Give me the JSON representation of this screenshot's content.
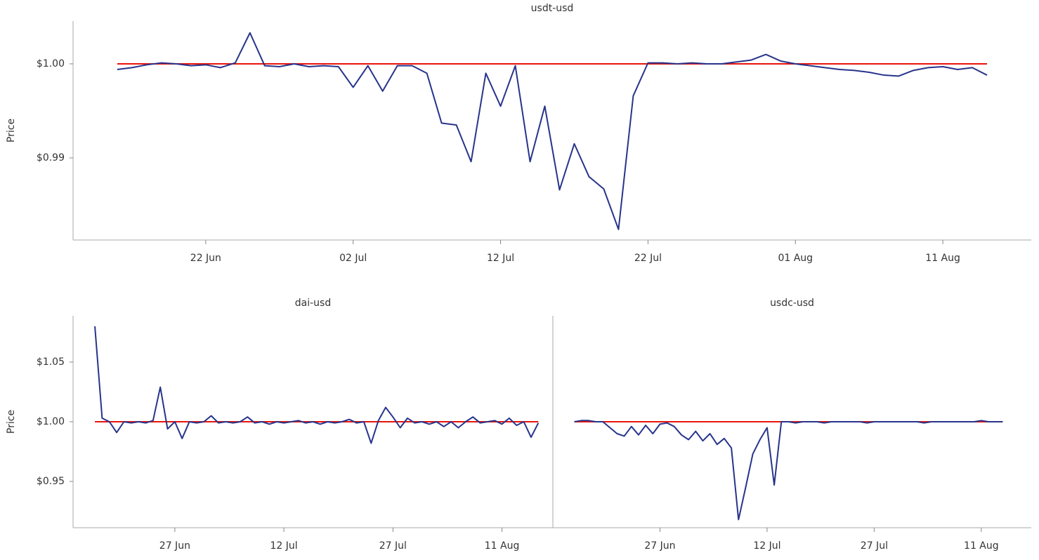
{
  "chart_data": [
    {
      "type": "line",
      "title": "usdt-usd",
      "ylabel": "Price",
      "color": "#27348b",
      "ref_line": {
        "value": 1.0,
        "color": "#e8140c"
      },
      "ylim": [
        0.98127,
        1.00455
      ],
      "yticks": [
        {
          "value": 1.0,
          "label": "$1.00"
        },
        {
          "value": 0.99,
          "label": "$0.99"
        }
      ],
      "xlim": [
        "13 Jun",
        "17 Aug"
      ],
      "xticks": [
        "22 Jun",
        "02 Jul",
        "12 Jul",
        "22 Jul",
        "01 Aug",
        "11 Aug"
      ],
      "x": [
        "16 Jun",
        "17 Jun",
        "18 Jun",
        "19 Jun",
        "20 Jun",
        "21 Jun",
        "22 Jun",
        "23 Jun",
        "24 Jun",
        "25 Jun",
        "26 Jun",
        "27 Jun",
        "28 Jun",
        "29 Jun",
        "30 Jun",
        "01 Jul",
        "02 Jul",
        "03 Jul",
        "04 Jul",
        "05 Jul",
        "06 Jul",
        "07 Jul",
        "08 Jul",
        "09 Jul",
        "10 Jul",
        "11 Jul",
        "12 Jul",
        "13 Jul",
        "14 Jul",
        "15 Jul",
        "16 Jul",
        "17 Jul",
        "18 Jul",
        "19 Jul",
        "20 Jul",
        "21 Jul",
        "22 Jul",
        "23 Jul",
        "24 Jul",
        "25 Jul",
        "26 Jul",
        "27 Jul",
        "28 Jul",
        "29 Jul",
        "30 Jul",
        "31 Jul",
        "01 Aug",
        "02 Aug",
        "03 Aug",
        "04 Aug",
        "05 Aug",
        "06 Aug",
        "07 Aug",
        "08 Aug",
        "09 Aug",
        "10 Aug",
        "11 Aug",
        "12 Aug",
        "13 Aug",
        "14 Aug"
      ],
      "values": [
        0.9994,
        0.9996,
        0.9999,
        1.0001,
        1.0,
        0.9998,
        0.9999,
        0.9996,
        1.0001,
        1.0033,
        0.9998,
        0.9997,
        1.0,
        0.9997,
        0.9998,
        0.9997,
        0.9975,
        0.9998,
        0.9971,
        0.9998,
        0.9998,
        0.999,
        0.9937,
        0.9935,
        0.9896,
        0.999,
        0.9955,
        0.9998,
        0.9896,
        0.9955,
        0.9866,
        0.9915,
        0.988,
        0.9867,
        0.9824,
        0.9966,
        1.0001,
        1.0001,
        1.0,
        1.0001,
        1.0,
        1.0,
        1.0002,
        1.0004,
        1.001,
        1.0003,
        1.0,
        0.9998,
        0.9996,
        0.9994,
        0.9993,
        0.9991,
        0.9988,
        0.9987,
        0.9993,
        0.9996,
        0.9997,
        0.9994,
        0.9996,
        0.9988
      ]
    },
    {
      "type": "line",
      "title": "dai-usd",
      "ylabel": "Price",
      "color": "#27348b",
      "ref_line": {
        "value": 1.0,
        "color": "#e8140c"
      },
      "ylim": [
        0.9112,
        1.0888
      ],
      "yticks": [
        {
          "value": 1.05,
          "label": "$1.05"
        },
        {
          "value": 1.0,
          "label": "$1.00"
        },
        {
          "value": 0.95,
          "label": "$0.95"
        }
      ],
      "xlim": [
        "13 Jun",
        "18 Aug"
      ],
      "xticks": [
        "27 Jun",
        "12 Jul",
        "27 Jul",
        "11 Aug"
      ],
      "x": [
        "16 Jun",
        "17 Jun",
        "18 Jun",
        "19 Jun",
        "20 Jun",
        "21 Jun",
        "22 Jun",
        "23 Jun",
        "24 Jun",
        "25 Jun",
        "26 Jun",
        "27 Jun",
        "28 Jun",
        "29 Jun",
        "30 Jun",
        "01 Jul",
        "02 Jul",
        "03 Jul",
        "04 Jul",
        "05 Jul",
        "06 Jul",
        "07 Jul",
        "08 Jul",
        "09 Jul",
        "10 Jul",
        "11 Jul",
        "12 Jul",
        "13 Jul",
        "14 Jul",
        "15 Jul",
        "16 Jul",
        "17 Jul",
        "18 Jul",
        "19 Jul",
        "20 Jul",
        "21 Jul",
        "22 Jul",
        "23 Jul",
        "24 Jul",
        "25 Jul",
        "26 Jul",
        "27 Jul",
        "28 Jul",
        "29 Jul",
        "30 Jul",
        "31 Jul",
        "01 Aug",
        "02 Aug",
        "03 Aug",
        "04 Aug",
        "05 Aug",
        "06 Aug",
        "07 Aug",
        "08 Aug",
        "09 Aug",
        "10 Aug",
        "11 Aug",
        "12 Aug",
        "13 Aug",
        "14 Aug",
        "15 Aug",
        "16 Aug"
      ],
      "values": [
        1.08,
        1.003,
        1.0,
        0.991,
        1.0,
        0.999,
        1.0,
        0.999,
        1.001,
        1.029,
        0.994,
        1.0,
        0.986,
        1.0,
        0.999,
        1.0,
        1.005,
        0.999,
        1.0,
        0.999,
        1.0,
        1.004,
        0.999,
        1.0,
        0.998,
        1.0,
        0.999,
        1.0,
        1.001,
        0.999,
        1.0,
        0.998,
        1.0,
        0.999,
        1.0,
        1.002,
        0.999,
        1.0,
        0.982,
        1.001,
        1.012,
        1.004,
        0.995,
        1.003,
        0.999,
        1.0,
        0.998,
        1.0,
        0.996,
        1.0,
        0.995,
        1.0,
        1.004,
        0.999,
        1.0,
        1.001,
        0.998,
        1.003,
        0.997,
        1.0,
        0.987,
        0.999
      ]
    },
    {
      "type": "line",
      "title": "usdc-usd",
      "color": "#27348b",
      "ref_line": {
        "value": 1.0,
        "color": "#e8140c"
      },
      "ylim": [
        0.9112,
        1.0888
      ],
      "xlim": [
        "12 Jun",
        "18 Aug"
      ],
      "xticks": [
        "27 Jun",
        "12 Jul",
        "27 Jul",
        "11 Aug"
      ],
      "x": [
        "15 Jun",
        "16 Jun",
        "17 Jun",
        "18 Jun",
        "19 Jun",
        "20 Jun",
        "21 Jun",
        "22 Jun",
        "23 Jun",
        "24 Jun",
        "25 Jun",
        "26 Jun",
        "27 Jun",
        "28 Jun",
        "29 Jun",
        "30 Jun",
        "01 Jul",
        "02 Jul",
        "03 Jul",
        "04 Jul",
        "05 Jul",
        "06 Jul",
        "07 Jul",
        "08 Jul",
        "09 Jul",
        "10 Jul",
        "11 Jul",
        "12 Jul",
        "13 Jul",
        "14 Jul",
        "15 Jul",
        "16 Jul",
        "17 Jul",
        "18 Jul",
        "19 Jul",
        "20 Jul",
        "21 Jul",
        "22 Jul",
        "23 Jul",
        "24 Jul",
        "25 Jul",
        "26 Jul",
        "27 Jul",
        "28 Jul",
        "29 Jul",
        "30 Jul",
        "31 Jul",
        "01 Aug",
        "02 Aug",
        "03 Aug",
        "04 Aug",
        "05 Aug",
        "06 Aug",
        "07 Aug",
        "08 Aug",
        "09 Aug",
        "10 Aug",
        "11 Aug",
        "12 Aug",
        "13 Aug",
        "14 Aug"
      ],
      "values": [
        1.0,
        1.001,
        1.001,
        1.0,
        1.0,
        0.995,
        0.99,
        0.988,
        0.996,
        0.989,
        0.997,
        0.99,
        0.998,
        0.999,
        0.996,
        0.989,
        0.985,
        0.992,
        0.984,
        0.99,
        0.981,
        0.986,
        0.978,
        0.918,
        0.945,
        0.973,
        0.985,
        0.995,
        0.947,
        1.0,
        1.0,
        0.999,
        1.0,
        1.0,
        1.0,
        0.999,
        1.0,
        1.0,
        1.0,
        1.0,
        1.0,
        0.999,
        1.0,
        1.0,
        1.0,
        1.0,
        1.0,
        1.0,
        1.0,
        0.999,
        1.0,
        1.0,
        1.0,
        1.0,
        1.0,
        1.0,
        1.0,
        1.001,
        1.0,
        1.0,
        1.0
      ]
    }
  ]
}
